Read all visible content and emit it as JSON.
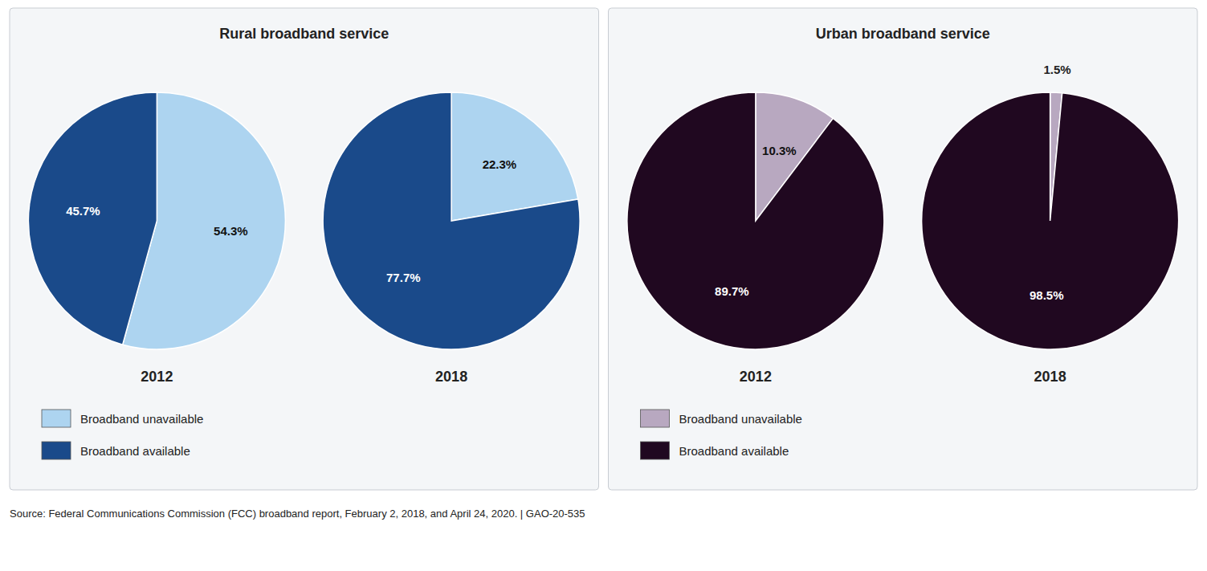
{
  "chart_data": [
    {
      "type": "pie",
      "title": "Rural broadband service",
      "categories": [
        "Broadband unavailable",
        "Broadband available"
      ],
      "colors": [
        "#add4f0",
        "#1a4a8a"
      ],
      "series": [
        {
          "name": "2012",
          "values": [
            54.3,
            45.7
          ],
          "value_labels": [
            "54.3%",
            "45.7%"
          ]
        },
        {
          "name": "2018",
          "values": [
            22.3,
            77.7
          ],
          "value_labels": [
            "22.3%",
            "77.7%"
          ]
        }
      ],
      "data_labels": true,
      "legend": "lower-left",
      "annotations": [
        "Source:  Federal Communications Commission (FCC) broadband report, February 2, 2018, and April 24, 2020.  |  GAO-20-535"
      ]
    },
    {
      "type": "pie",
      "title": "Urban broadband service",
      "categories": [
        "Broadband unavailable",
        "Broadband available"
      ],
      "colors": [
        "#b8a8c0",
        "#200820"
      ],
      "series": [
        {
          "name": "2012",
          "values": [
            10.3,
            89.7
          ],
          "value_labels": [
            "10.3%",
            "89.7%"
          ]
        },
        {
          "name": "2018",
          "values": [
            1.5,
            98.5
          ],
          "value_labels": [
            "1.5%",
            "98.5%"
          ]
        }
      ],
      "data_labels": true,
      "legend": "lower-left"
    }
  ]
}
